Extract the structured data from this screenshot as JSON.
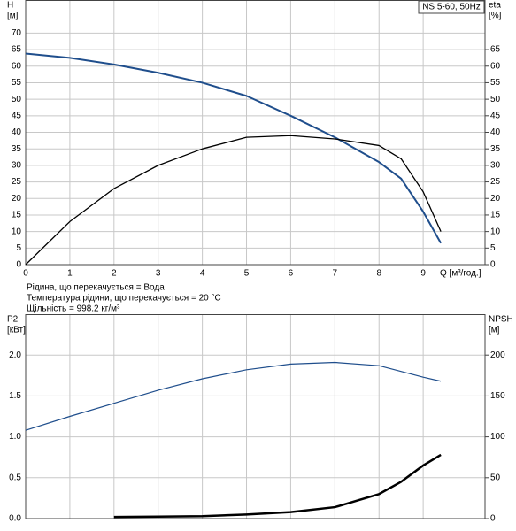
{
  "chart_data": [
    {
      "type": "line",
      "title": "NS 5-60, 50Hz",
      "ylabel": "H",
      "yunit": "[м]",
      "y2label": "eta",
      "y2unit": "[%]",
      "xlabel": "Q [м³/год.]",
      "annotations": [
        "Рідина, що перекачується = Вода",
        "Температура рідини, що перекачується = 20 °C",
        "Щільність = 998.2 кг/м³"
      ],
      "x": [
        0,
        1,
        2,
        3,
        4,
        5,
        6,
        7,
        8,
        8.5,
        9,
        9.4
      ],
      "series": [
        {
          "color": "#1f4e8c",
          "values": [
            63.8,
            62.5,
            60.5,
            58,
            55,
            51,
            45,
            38.5,
            31,
            26,
            16,
            6.5
          ]
        },
        {
          "color": "#000000",
          "axis": "y2",
          "values": [
            0,
            13,
            23,
            30,
            35,
            38.5,
            39,
            38,
            36,
            32,
            22,
            10
          ]
        }
      ],
      "xlim": [
        0,
        10.4
      ],
      "xticks": [
        0,
        1,
        2,
        3,
        4,
        5,
        6,
        7,
        8,
        9
      ],
      "show_xtick_labels": true,
      "ylim": [
        0,
        80
      ],
      "yticks": [
        0,
        5,
        10,
        15,
        20,
        25,
        30,
        35,
        40,
        45,
        50,
        55,
        60,
        65,
        70
      ],
      "y2lim": [
        0,
        80
      ],
      "y2ticks": [
        0,
        5,
        10,
        15,
        20,
        25,
        30,
        35,
        40,
        45,
        50,
        55,
        60,
        65
      ],
      "grid": true
    },
    {
      "type": "line",
      "ylabel": "P2",
      "yunit": "[кВт]",
      "y2label": "NPSH",
      "y2unit": "[м]",
      "x": [
        0,
        1,
        2,
        3,
        4,
        5,
        6,
        7,
        8,
        8.5,
        9,
        9.4
      ],
      "series": [
        {
          "color": "#1f4e8c",
          "values": [
            1.08,
            1.25,
            1.41,
            1.57,
            1.71,
            1.82,
            1.89,
            1.91,
            1.87,
            1.8,
            1.73,
            1.68
          ]
        },
        {
          "color": "#000000",
          "axis": "y2",
          "values": [
            null,
            null,
            2,
            2.5,
            3,
            5,
            8,
            14,
            30,
            45,
            65,
            78
          ]
        }
      ],
      "xlim": [
        0,
        10.4
      ],
      "xticks": [
        0,
        1,
        2,
        3,
        4,
        5,
        6,
        7,
        8,
        9
      ],
      "show_xtick_labels": false,
      "ylim": [
        0,
        2.5
      ],
      "yticks": [
        {
          "value": 0,
          "label": "0.0"
        },
        0.5,
        {
          "value": 1,
          "label": "1.0"
        },
        1.5,
        {
          "value": 2,
          "label": "2.0"
        }
      ],
      "y2lim": [
        0,
        250
      ],
      "y2ticks": [
        0,
        50,
        100,
        150,
        200
      ],
      "grid": true
    }
  ]
}
